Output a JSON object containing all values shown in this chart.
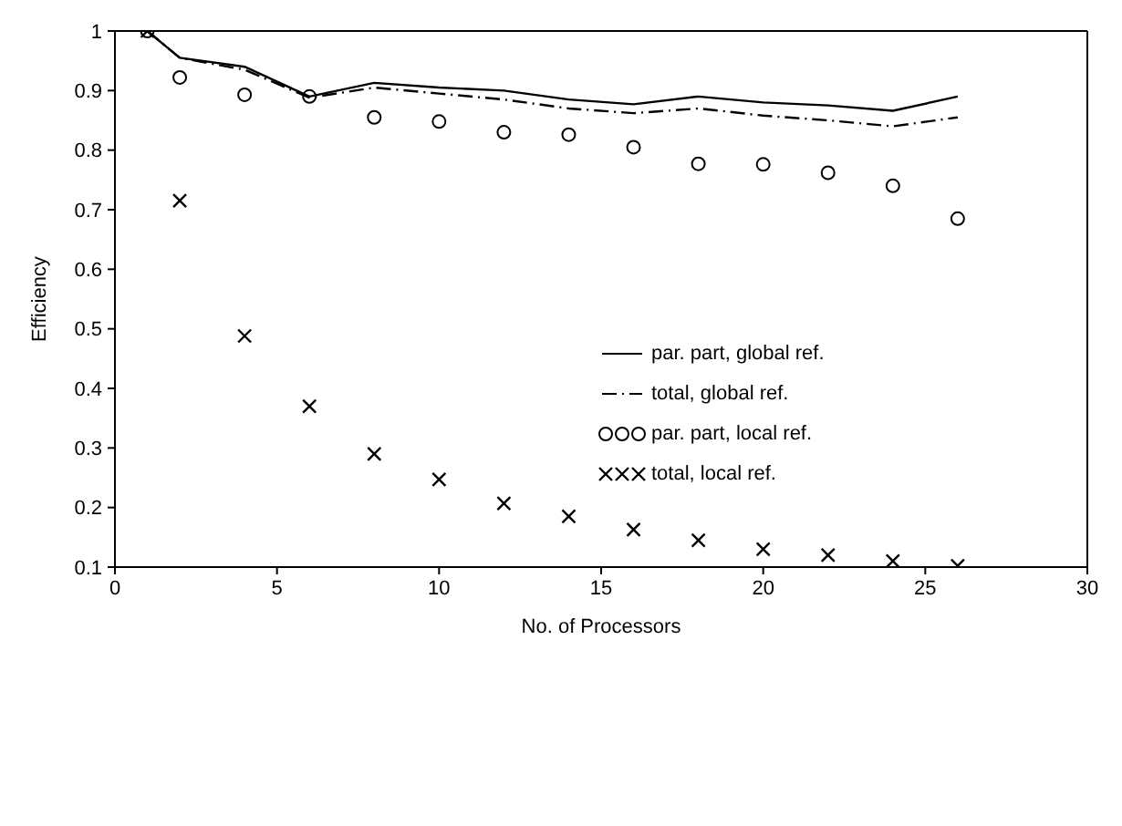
{
  "chart_data": {
    "type": "line",
    "xlabel": "No. of Processors",
    "ylabel": "Efficiency",
    "x": [
      1,
      2,
      4,
      6,
      8,
      10,
      12,
      14,
      16,
      18,
      20,
      22,
      24,
      26
    ],
    "series": [
      {
        "name": "par. part, global ref.",
        "color": "#000000",
        "line_style": "solid",
        "marker": "none",
        "values": [
          1,
          0.955,
          0.94,
          0.89,
          0.913,
          0.905,
          0.9,
          0.885,
          0.877,
          0.89,
          0.88,
          0.875,
          0.866,
          0.89
        ]
      },
      {
        "name": "total, global ref.",
        "color": "#000000",
        "line_style": "dashdot",
        "marker": "none",
        "values": [
          1,
          0.955,
          0.935,
          0.888,
          0.905,
          0.895,
          0.885,
          0.87,
          0.862,
          0.87,
          0.858,
          0.85,
          0.84,
          0.855
        ]
      },
      {
        "name": "par. part, local ref.",
        "type": "scatter",
        "color": "#000000",
        "marker": "circle",
        "values": [
          1,
          0.922,
          0.893,
          0.89,
          0.855,
          0.848,
          0.83,
          0.826,
          0.805,
          0.777,
          0.776,
          0.762,
          0.74,
          0.685
        ]
      },
      {
        "name": "total, local ref.",
        "type": "scatter",
        "color": "#000000",
        "marker": "cross",
        "values": [
          1,
          0.715,
          0.488,
          0.37,
          0.29,
          0.247,
          0.207,
          0.185,
          0.163,
          0.145,
          0.13,
          0.12,
          0.11,
          0.102
        ]
      }
    ],
    "xlim": [
      0,
      30
    ],
    "xticks": [
      0,
      5,
      10,
      15,
      20,
      25,
      30
    ],
    "ylim": [
      0.1,
      1
    ],
    "yticks": [
      0.1,
      0.2,
      0.3,
      0.4,
      0.5,
      0.6,
      0.7,
      0.8,
      0.9,
      1
    ],
    "legend": "right"
  }
}
